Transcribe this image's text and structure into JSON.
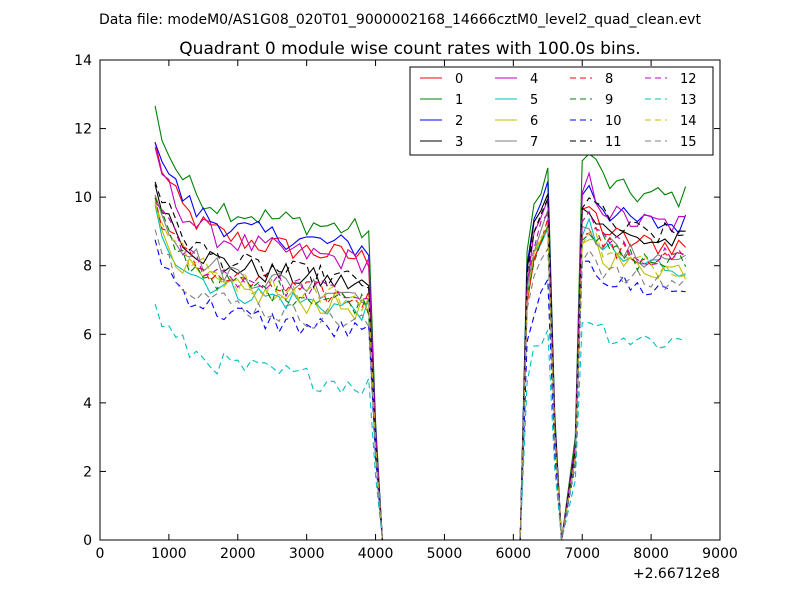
{
  "header": {
    "datafile_label": "Data file: modeM0/AS1G08_020T01_9000002168_14666cztM0_level2_quad_clean.evt"
  },
  "chart_data": {
    "type": "line",
    "title": "Quadrant 0 module wise count rates with 100.0s bins.",
    "xlabel": "",
    "ylabel": "",
    "x_offset_label": "+2.66712e8",
    "xlim": [
      0,
      9000
    ],
    "ylim": [
      0,
      14
    ],
    "xticks": [
      0,
      1000,
      2000,
      3000,
      4000,
      5000,
      6000,
      7000,
      8000,
      9000
    ],
    "yticks": [
      0,
      2,
      4,
      6,
      8,
      10,
      12,
      14
    ],
    "xtick_labels": [
      "0",
      "1000",
      "2000",
      "3000",
      "4000",
      "5000",
      "6000",
      "7000",
      "8000",
      "9000"
    ],
    "ytick_labels": [
      "0",
      "2",
      "4",
      "6",
      "8",
      "10",
      "12",
      "14"
    ],
    "grid": false,
    "legend_position": "top-right",
    "legend_columns": 4,
    "segments": {
      "seg1": {
        "x_start": 800,
        "x_end": 3900,
        "step": 100,
        "drop": [
          4000,
          4100
        ]
      },
      "seg2": {
        "x": [
          6100,
          6200,
          6300,
          6400,
          6500,
          6600,
          6700
        ]
      },
      "seg3": {
        "x_start": 7100,
        "x_end": 8550,
        "step": 100
      },
      "zero": [
        4100,
        6100
      ]
    },
    "series": [
      {
        "name": "0",
        "color": "#ff0000",
        "dashed": false,
        "level1": 9.0,
        "level2": 9.0,
        "level3": 8.6
      },
      {
        "name": "1",
        "color": "#008000",
        "dashed": false,
        "level1": 9.8,
        "level2": 10.6,
        "level3": 10.0
      },
      {
        "name": "2",
        "color": "#0000ff",
        "dashed": false,
        "level1": 9.3,
        "level2": 10.2,
        "level3": 9.2
      },
      {
        "name": "3",
        "color": "#000000",
        "dashed": false,
        "level1": 8.2,
        "level2": 10.0,
        "level3": 8.7
      },
      {
        "name": "4",
        "color": "#bf00bf",
        "dashed": false,
        "level1": 8.9,
        "level2": 9.6,
        "level3": 9.2
      },
      {
        "name": "5",
        "color": "#00bfbf",
        "dashed": false,
        "level1": 7.5,
        "level2": 9.0,
        "level3": 8.0
      },
      {
        "name": "6",
        "color": "#bfbf00",
        "dashed": false,
        "level1": 7.5,
        "level2": 8.9,
        "level3": 7.9
      },
      {
        "name": "7",
        "color": "#808080",
        "dashed": false,
        "level1": 8.0,
        "level2": 9.3,
        "level3": 8.2
      },
      {
        "name": "8",
        "color": "#ff0000",
        "dashed": true,
        "level1": 7.8,
        "level2": 9.1,
        "level3": 8.2
      },
      {
        "name": "9",
        "color": "#008000",
        "dashed": true,
        "level1": 7.7,
        "level2": 9.0,
        "level3": 8.1
      },
      {
        "name": "10",
        "color": "#0000ff",
        "dashed": true,
        "level1": 6.8,
        "level2": 7.3,
        "level3": 7.3
      },
      {
        "name": "11",
        "color": "#000000",
        "dashed": true,
        "level1": 8.3,
        "level2": 9.7,
        "level3": 8.9
      },
      {
        "name": "12",
        "color": "#bf00bf",
        "dashed": true,
        "level1": 7.9,
        "level2": 9.4,
        "level3": 8.3
      },
      {
        "name": "13",
        "color": "#00bfbf",
        "dashed": true,
        "level1": 5.3,
        "level2": 6.0,
        "level3": 5.8
      },
      {
        "name": "14",
        "color": "#bfbf00",
        "dashed": true,
        "level1": 7.8,
        "level2": 9.0,
        "level3": 8.0
      },
      {
        "name": "15",
        "color": "#808080",
        "dashed": true,
        "level1": 7.1,
        "level2": 8.4,
        "level3": 7.5
      }
    ]
  }
}
